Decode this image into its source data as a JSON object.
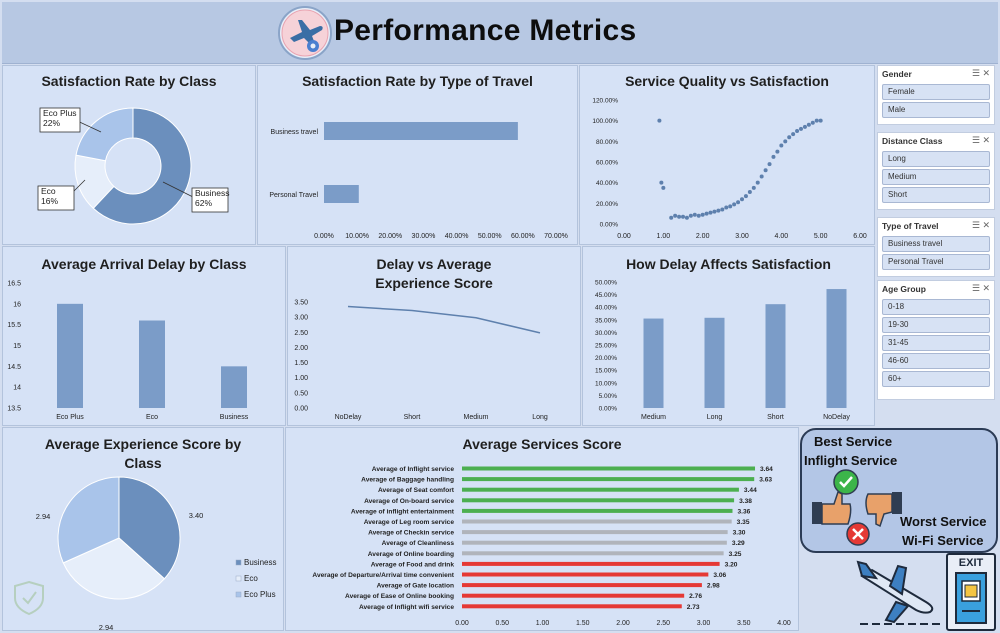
{
  "header": {
    "title": "Performance Metrics"
  },
  "panels": {
    "sat_class": "Satisfaction Rate by Class",
    "sat_travel": "Satisfaction Rate by Type of Travel",
    "service_quality": "Service Quality vs Satisfaction",
    "arrival_delay": "Average Arrival Delay by Class",
    "delay_exp": "Delay vs Average Experience Score",
    "delay_sat": "How Delay Affects Satisfaction",
    "exp_class": "Average Experience Score by Class",
    "services": "Average Services Score"
  },
  "slicers": [
    {
      "title": "Gender",
      "items": [
        "Female",
        "Male"
      ]
    },
    {
      "title": "Distance Class",
      "items": [
        "Long",
        "Medium",
        "Short"
      ]
    },
    {
      "title": "Type of Travel",
      "items": [
        "Business travel",
        "Personal Travel"
      ]
    },
    {
      "title": "Age Group",
      "items": [
        "0-18",
        "19-30",
        "31-45",
        "46-60",
        "60+"
      ]
    }
  ],
  "best_worst": {
    "best_label": "Best Service",
    "best_value": "Inflight Service",
    "worst_label": "Worst Service",
    "worst_value": "Wi-Fi Service"
  },
  "exit": {
    "label": "EXIT"
  },
  "chart_data": [
    {
      "type": "pie",
      "title": "Satisfaction Rate by Class",
      "categories": [
        "Business",
        "Eco",
        "Eco Plus"
      ],
      "values": [
        62,
        16,
        22
      ],
      "labels": [
        "Business\n62%",
        "Eco\n16%",
        "Eco Plus\n22%"
      ],
      "donut": true,
      "colors": [
        "#6b8fbd",
        "#e6eefa",
        "#a9c4ea"
      ]
    },
    {
      "type": "bar",
      "orientation": "horizontal",
      "title": "Satisfaction Rate by Type of Travel",
      "categories": [
        "Business travel",
        "Personal Travel"
      ],
      "values": [
        58.5,
        10.5
      ],
      "xlim": [
        0,
        70
      ],
      "xticks": [
        "0.00%",
        "10.00%",
        "20.00%",
        "30.00%",
        "40.00%",
        "50.00%",
        "60.00%",
        "70.00%"
      ]
    },
    {
      "type": "scatter",
      "title": "Service Quality vs Satisfaction",
      "x": [
        0.9,
        0.95,
        1.0,
        1.2,
        1.3,
        1.4,
        1.5,
        1.6,
        1.7,
        1.8,
        1.9,
        2.0,
        2.1,
        2.2,
        2.3,
        2.4,
        2.5,
        2.6,
        2.7,
        2.8,
        2.9,
        3.0,
        3.1,
        3.2,
        3.3,
        3.4,
        3.5,
        3.6,
        3.7,
        3.8,
        3.9,
        4.0,
        4.1,
        4.2,
        4.3,
        4.4,
        4.5,
        4.6,
        4.7,
        4.8,
        4.9,
        5.0
      ],
      "y": [
        100,
        40,
        35,
        6,
        8,
        7,
        7,
        6,
        8,
        9,
        8,
        9,
        10,
        11,
        12,
        13,
        14,
        16,
        17,
        19,
        21,
        24,
        27,
        31,
        35,
        40,
        46,
        52,
        58,
        65,
        70,
        76,
        80,
        84,
        87,
        90,
        92,
        94,
        96,
        98,
        100,
        100
      ],
      "xlim": [
        0,
        6
      ],
      "ylim": [
        0,
        120
      ],
      "xticks": [
        "0.00",
        "1.00",
        "2.00",
        "3.00",
        "4.00",
        "5.00",
        "6.00"
      ],
      "yticks": [
        "0.00%",
        "20.00%",
        "40.00%",
        "60.00%",
        "80.00%",
        "100.00%",
        "120.00%"
      ]
    },
    {
      "type": "bar",
      "title": "Average Arrival Delay by Class",
      "categories": [
        "Eco Plus",
        "Eco",
        "Business"
      ],
      "values": [
        16.0,
        15.6,
        14.5
      ],
      "ylim": [
        13.5,
        16.5
      ],
      "yticks": [
        "13.5",
        "14",
        "14.5",
        "15",
        "15.5",
        "16",
        "16.5"
      ]
    },
    {
      "type": "line",
      "title": "Delay vs Average Experience Score",
      "categories": [
        "NoDelay",
        "Short",
        "Medium",
        "Long"
      ],
      "values": [
        3.35,
        3.22,
        2.98,
        2.48
      ],
      "ylim": [
        0,
        3.5
      ],
      "yticks": [
        "0.00",
        "0.50",
        "1.00",
        "1.50",
        "2.00",
        "2.50",
        "3.00",
        "3.50"
      ]
    },
    {
      "type": "bar",
      "title": "How Delay Affects Satisfaction",
      "categories": [
        "Medium",
        "Long",
        "Short",
        "NoDelay"
      ],
      "values": [
        35.5,
        35.8,
        41.2,
        47.2
      ],
      "ylim": [
        0,
        50
      ],
      "yticks": [
        "0.00%",
        "5.00%",
        "10.00%",
        "15.00%",
        "20.00%",
        "25.00%",
        "30.00%",
        "35.00%",
        "40.00%",
        "45.00%",
        "50.00%"
      ]
    },
    {
      "type": "pie",
      "title": "Average Experience Score by Class",
      "categories": [
        "Business",
        "Eco",
        "Eco Plus"
      ],
      "values": [
        3.4,
        2.94,
        2.94
      ],
      "labels": [
        "3.40",
        "2.94",
        "2.94"
      ],
      "colors": [
        "#6b8fbd",
        "#e6eefa",
        "#a9c4ea"
      ]
    },
    {
      "type": "bar",
      "orientation": "horizontal",
      "title": "Average Services Score",
      "categories": [
        "Average of Inflight service",
        "Average of Baggage handling",
        "Average of Seat comfort",
        "Average of On-board service",
        "Average of inflight entertainment",
        "Average of Leg room service",
        "Average of Checkin service",
        "Average of Cleanliness",
        "Average of Online boarding",
        "Average of Food and drink",
        "Average of Departure/Arrival time convenient",
        "Average of Gate location",
        "Average of Ease of Online booking",
        "Average of Inflight wifi service"
      ],
      "values": [
        3.64,
        3.63,
        3.44,
        3.38,
        3.36,
        3.35,
        3.3,
        3.29,
        3.25,
        3.2,
        3.06,
        2.98,
        2.76,
        2.73
      ],
      "labels": [
        "3.64",
        "3.63",
        "3.44",
        "3.38",
        "3.36",
        "3.35",
        "3.30",
        "3.29",
        "3.25",
        "3.20",
        "3.06",
        "2.98",
        "2.76",
        "2.73"
      ],
      "colors": [
        "#4caf50",
        "#4caf50",
        "#4caf50",
        "#4caf50",
        "#4caf50",
        "#b0b4bb",
        "#b0b4bb",
        "#b0b4bb",
        "#b0b4bb",
        "#e53935",
        "#e53935",
        "#e53935",
        "#e53935",
        "#e53935"
      ],
      "xlim": [
        0,
        4
      ],
      "xticks": [
        "0.00",
        "0.50",
        "1.00",
        "1.50",
        "2.00",
        "2.50",
        "3.00",
        "3.50",
        "4.00"
      ]
    }
  ]
}
